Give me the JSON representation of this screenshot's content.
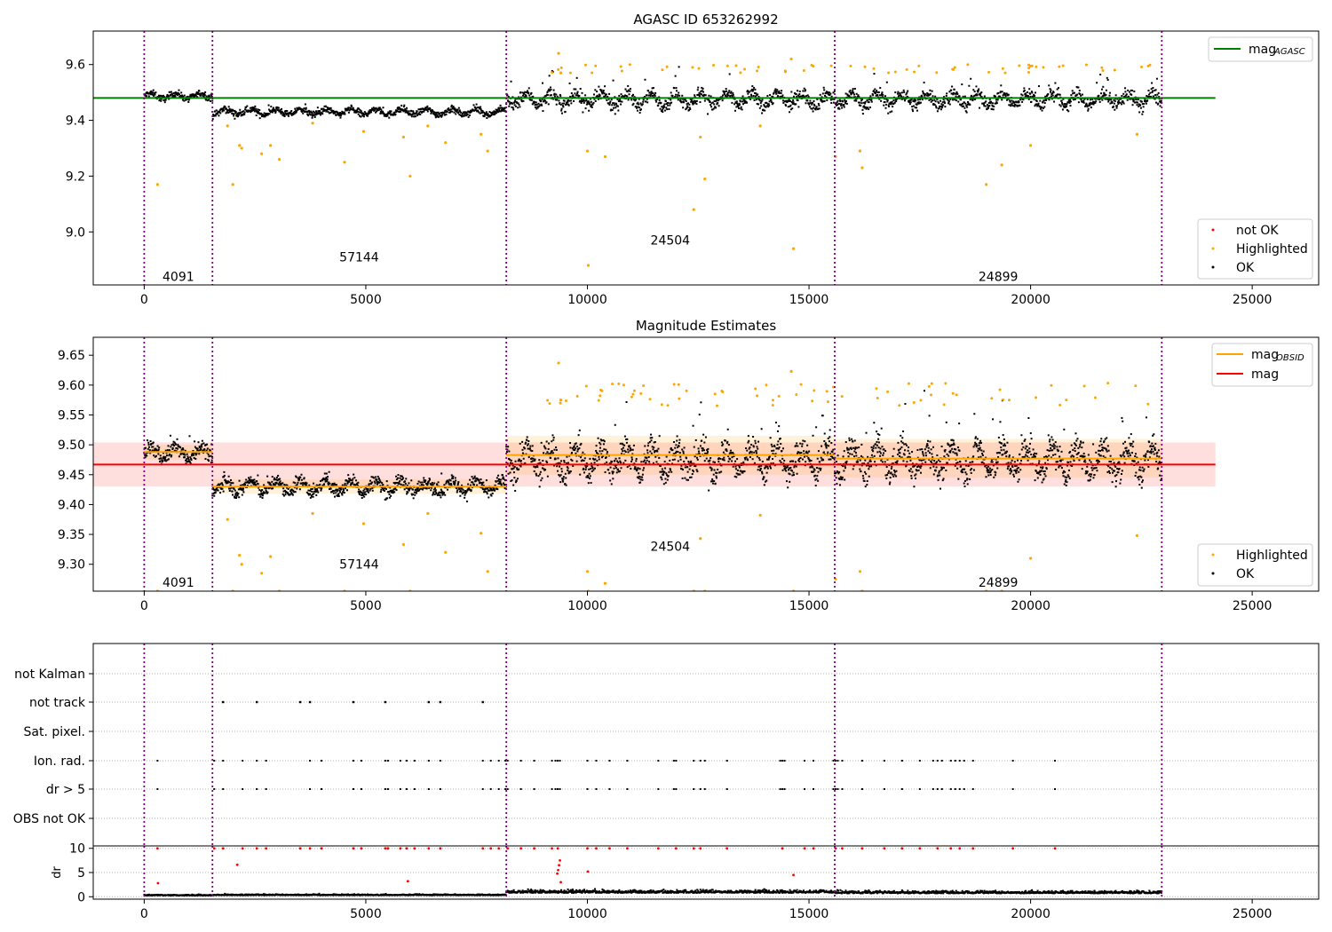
{
  "chart_data": [
    {
      "type": "scatter",
      "title": "AGASC ID 653262992",
      "xlim": [
        -1150,
        26500
      ],
      "ylim": [
        8.81,
        9.72
      ],
      "xticks": [
        0,
        5000,
        10000,
        15000,
        20000,
        25000
      ],
      "yticks": [
        9.0,
        9.2,
        9.4,
        9.6
      ],
      "ytick_labels": [
        "9.0",
        "9.2",
        "9.4",
        "9.6"
      ],
      "obs_boundaries": [
        0,
        1540,
        8170,
        15580,
        22960
      ],
      "obs_labels": [
        {
          "text": "4091",
          "x": 770,
          "y": 8.84
        },
        {
          "text": "57144",
          "x": 4850,
          "y": 8.91
        },
        {
          "text": "24504",
          "x": 11870,
          "y": 8.97
        },
        {
          "text": "24899",
          "x": 19270,
          "y": 8.84
        }
      ],
      "segments": [
        {
          "x": [
            0,
            1540
          ],
          "mean": 9.487,
          "spread": 0.012,
          "spike": 0.02
        },
        {
          "x": [
            1540,
            8170
          ],
          "mean": 9.43,
          "spread": 0.012,
          "spike": 0.015
        },
        {
          "x": [
            8170,
            15580
          ],
          "mean": 9.475,
          "spread": 0.025,
          "spike": 0.06
        },
        {
          "x": [
            15580,
            22960
          ],
          "mean": 9.475,
          "spread": 0.025,
          "spike": 0.06
        }
      ],
      "reference_line": {
        "name": "mag_AGASC",
        "value": 9.48,
        "x": [
          -1150,
          24170
        ],
        "color": "#008000"
      },
      "highlighted_outliers": [
        {
          "x": 300,
          "y": 9.17
        },
        {
          "x": 1880,
          "y": 9.38
        },
        {
          "x": 2000,
          "y": 9.17
        },
        {
          "x": 2150,
          "y": 9.31
        },
        {
          "x": 2200,
          "y": 9.3
        },
        {
          "x": 2650,
          "y": 9.28
        },
        {
          "x": 2850,
          "y": 9.31
        },
        {
          "x": 3050,
          "y": 9.26
        },
        {
          "x": 3800,
          "y": 9.39
        },
        {
          "x": 4520,
          "y": 9.25
        },
        {
          "x": 4950,
          "y": 9.36
        },
        {
          "x": 5850,
          "y": 9.34
        },
        {
          "x": 6000,
          "y": 9.2
        },
        {
          "x": 6400,
          "y": 9.38
        },
        {
          "x": 6800,
          "y": 9.32
        },
        {
          "x": 7600,
          "y": 9.35
        },
        {
          "x": 7750,
          "y": 9.29
        },
        {
          "x": 9350,
          "y": 9.64
        },
        {
          "x": 9400,
          "y": 9.57
        },
        {
          "x": 10000,
          "y": 9.29
        },
        {
          "x": 10020,
          "y": 8.88
        },
        {
          "x": 10400,
          "y": 9.27
        },
        {
          "x": 12400,
          "y": 9.08
        },
        {
          "x": 12550,
          "y": 9.34
        },
        {
          "x": 12650,
          "y": 9.19
        },
        {
          "x": 13900,
          "y": 9.38
        },
        {
          "x": 14650,
          "y": 8.94
        },
        {
          "x": 14600,
          "y": 9.62
        },
        {
          "x": 15600,
          "y": 9.27
        },
        {
          "x": 16150,
          "y": 9.29
        },
        {
          "x": 16200,
          "y": 9.23
        },
        {
          "x": 19000,
          "y": 9.17
        },
        {
          "x": 19350,
          "y": 9.24
        },
        {
          "x": 20000,
          "y": 9.31
        },
        {
          "x": 22400,
          "y": 9.35
        }
      ],
      "legend_line": [
        {
          "name": "mag",
          "subscript": "AGASC",
          "color": "#008000"
        }
      ],
      "legend_points": [
        {
          "name": "not OK",
          "color": "#ff0000"
        },
        {
          "name": "Highlighted",
          "color": "#ffa500"
        },
        {
          "name": "OK",
          "color": "#000000"
        }
      ]
    },
    {
      "type": "scatter",
      "title": "Magnitude Estimates",
      "xlim": [
        -1150,
        26500
      ],
      "ylim": [
        9.255,
        9.68
      ],
      "xticks": [
        0,
        5000,
        10000,
        15000,
        20000,
        25000
      ],
      "yticks": [
        9.3,
        9.35,
        9.4,
        9.45,
        9.5,
        9.55,
        9.6,
        9.65
      ],
      "ytick_labels": [
        "9.30",
        "9.35",
        "9.40",
        "9.45",
        "9.50",
        "9.55",
        "9.60",
        "9.65"
      ],
      "obs_boundaries": [
        0,
        1540,
        8170,
        15580,
        22960
      ],
      "obs_labels": [
        {
          "text": "4091",
          "x": 770,
          "y": 9.27
        },
        {
          "text": "57144",
          "x": 4850,
          "y": 9.3
        },
        {
          "text": "24504",
          "x": 11870,
          "y": 9.33
        },
        {
          "text": "24899",
          "x": 19270,
          "y": 9.27
        }
      ],
      "segments": [
        {
          "x": [
            0,
            1540
          ],
          "mean": 9.487,
          "spread": 0.012,
          "spike": 0.02
        },
        {
          "x": [
            1540,
            8170
          ],
          "mean": 9.43,
          "spread": 0.012,
          "spike": 0.015
        },
        {
          "x": [
            8170,
            15580
          ],
          "mean": 9.475,
          "spread": 0.025,
          "spike": 0.06
        },
        {
          "x": [
            15580,
            22960
          ],
          "mean": 9.475,
          "spread": 0.025,
          "spike": 0.06
        }
      ],
      "mag_line": {
        "name": "mag",
        "value": 9.467,
        "band": [
          9.43,
          9.504
        ],
        "x": [
          -1150,
          24170
        ],
        "color": "#ff0000"
      },
      "obsid_lines": [
        {
          "x": [
            0,
            1540
          ],
          "value": 9.488,
          "band": [
            9.475,
            9.5
          ]
        },
        {
          "x": [
            1540,
            8170
          ],
          "value": 9.43,
          "band": [
            9.418,
            9.442
          ]
        },
        {
          "x": [
            8170,
            15580
          ],
          "value": 9.483,
          "band": [
            9.45,
            9.515
          ]
        },
        {
          "x": [
            15580,
            22960
          ],
          "value": 9.477,
          "band": [
            9.445,
            9.51
          ]
        }
      ],
      "highlighted_outliers": [
        {
          "x": 300,
          "y": 9.255
        },
        {
          "x": 1880,
          "y": 9.375
        },
        {
          "x": 2000,
          "y": 9.255
        },
        {
          "x": 2150,
          "y": 9.315
        },
        {
          "x": 2200,
          "y": 9.3
        },
        {
          "x": 2650,
          "y": 9.285
        },
        {
          "x": 2850,
          "y": 9.313
        },
        {
          "x": 3050,
          "y": 9.255
        },
        {
          "x": 3800,
          "y": 9.385
        },
        {
          "x": 4520,
          "y": 9.255
        },
        {
          "x": 4950,
          "y": 9.368
        },
        {
          "x": 5850,
          "y": 9.333
        },
        {
          "x": 6000,
          "y": 9.255
        },
        {
          "x": 6400,
          "y": 9.385
        },
        {
          "x": 6800,
          "y": 9.32
        },
        {
          "x": 7600,
          "y": 9.352
        },
        {
          "x": 7750,
          "y": 9.288
        },
        {
          "x": 9350,
          "y": 9.637
        },
        {
          "x": 9400,
          "y": 9.575
        },
        {
          "x": 10000,
          "y": 9.288
        },
        {
          "x": 10020,
          "y": 9.255
        },
        {
          "x": 10400,
          "y": 9.268
        },
        {
          "x": 12400,
          "y": 9.255
        },
        {
          "x": 12550,
          "y": 9.343
        },
        {
          "x": 12650,
          "y": 9.255
        },
        {
          "x": 13900,
          "y": 9.382
        },
        {
          "x": 14650,
          "y": 9.255
        },
        {
          "x": 14600,
          "y": 9.623
        },
        {
          "x": 15600,
          "y": 9.275
        },
        {
          "x": 16150,
          "y": 9.288
        },
        {
          "x": 16200,
          "y": 9.255
        },
        {
          "x": 19000,
          "y": 9.255
        },
        {
          "x": 19350,
          "y": 9.255
        },
        {
          "x": 20000,
          "y": 9.31
        },
        {
          "x": 22400,
          "y": 9.348
        }
      ],
      "legend_line": [
        {
          "name": "mag",
          "subscript": "OBSID",
          "color": "#ffa500"
        },
        {
          "name": "mag",
          "subscript": "",
          "color": "#ff0000"
        }
      ],
      "legend_points": [
        {
          "name": "Highlighted",
          "color": "#ffa500"
        },
        {
          "name": "OK",
          "color": "#000000"
        }
      ]
    },
    {
      "type": "scatter",
      "xlim": [
        -1150,
        26500
      ],
      "categories": [
        "not Kalman",
        "not track",
        "Sat. pixel.",
        "Ion. rad.",
        "dr > 5",
        "OBS not OK"
      ],
      "obs_boundaries": [
        0,
        1540,
        8170,
        15580,
        22960
      ],
      "flag_points": {
        "not track": [
          1780,
          2540,
          3520,
          3740,
          4720,
          5440,
          6420,
          6680,
          7640
        ],
        "Ion. rad.": [
          300,
          1580,
          1780,
          2220,
          2540,
          2750,
          3740,
          4000,
          4720,
          4900,
          5440,
          5500,
          5780,
          5920,
          6100,
          6420,
          6680,
          7640,
          7820,
          8000,
          8150,
          8200,
          8500,
          8800,
          9200,
          9280,
          9330,
          9380,
          10000,
          10200,
          10500,
          10900,
          11600,
          11950,
          12000,
          12400,
          12550,
          12650,
          13150,
          14350,
          14400,
          14450,
          14900,
          15100,
          15550,
          15600,
          15650,
          15750,
          16200,
          16700,
          17100,
          17500,
          17800,
          17900,
          18000,
          18200,
          18300,
          18400,
          18500,
          18700,
          19600,
          20550
        ]
      },
      "dr_panel": {
        "ylim": [
          -0.5,
          10.5
        ],
        "yticks": [
          0,
          5,
          10
        ],
        "ytick_labels": [
          "0",
          "5",
          "10"
        ],
        "ylabel": "dr",
        "red_points": [
          {
            "x": 300,
            "y": 10
          },
          {
            "x": 310,
            "y": 2.8
          },
          {
            "x": 1580,
            "y": 10
          },
          {
            "x": 1780,
            "y": 10
          },
          {
            "x": 2100,
            "y": 6.6
          },
          {
            "x": 2220,
            "y": 10
          },
          {
            "x": 2540,
            "y": 10
          },
          {
            "x": 2750,
            "y": 10
          },
          {
            "x": 3520,
            "y": 10
          },
          {
            "x": 3740,
            "y": 10
          },
          {
            "x": 4000,
            "y": 10
          },
          {
            "x": 4720,
            "y": 10
          },
          {
            "x": 4900,
            "y": 10
          },
          {
            "x": 5440,
            "y": 10
          },
          {
            "x": 5500,
            "y": 10
          },
          {
            "x": 5780,
            "y": 10
          },
          {
            "x": 5920,
            "y": 10
          },
          {
            "x": 5950,
            "y": 3.2
          },
          {
            "x": 6100,
            "y": 10
          },
          {
            "x": 6420,
            "y": 10
          },
          {
            "x": 6680,
            "y": 10
          },
          {
            "x": 7640,
            "y": 10
          },
          {
            "x": 7820,
            "y": 10
          },
          {
            "x": 8000,
            "y": 10
          },
          {
            "x": 8200,
            "y": 10
          },
          {
            "x": 8500,
            "y": 10
          },
          {
            "x": 8800,
            "y": 10
          },
          {
            "x": 9200,
            "y": 10
          },
          {
            "x": 9330,
            "y": 10
          },
          {
            "x": 9380,
            "y": 7.5
          },
          {
            "x": 9360,
            "y": 6.5
          },
          {
            "x": 9340,
            "y": 5.5
          },
          {
            "x": 9320,
            "y": 4.8
          },
          {
            "x": 9400,
            "y": 3
          },
          {
            "x": 10000,
            "y": 10
          },
          {
            "x": 10010,
            "y": 5.2
          },
          {
            "x": 10200,
            "y": 10
          },
          {
            "x": 10500,
            "y": 10
          },
          {
            "x": 10900,
            "y": 10
          },
          {
            "x": 11600,
            "y": 10
          },
          {
            "x": 12000,
            "y": 10
          },
          {
            "x": 12400,
            "y": 10
          },
          {
            "x": 12550,
            "y": 10
          },
          {
            "x": 13150,
            "y": 10
          },
          {
            "x": 14400,
            "y": 10
          },
          {
            "x": 14650,
            "y": 4.5
          },
          {
            "x": 14900,
            "y": 10
          },
          {
            "x": 15100,
            "y": 10
          },
          {
            "x": 15600,
            "y": 10
          },
          {
            "x": 15750,
            "y": 10
          },
          {
            "x": 16200,
            "y": 10
          },
          {
            "x": 16700,
            "y": 10
          },
          {
            "x": 17100,
            "y": 10
          },
          {
            "x": 17500,
            "y": 10
          },
          {
            "x": 17900,
            "y": 10
          },
          {
            "x": 18200,
            "y": 10
          },
          {
            "x": 18400,
            "y": 10
          },
          {
            "x": 18700,
            "y": 10
          },
          {
            "x": 19600,
            "y": 10
          },
          {
            "x": 20550,
            "y": 10
          }
        ],
        "black_segments": [
          {
            "x": [
              0,
              1540
            ],
            "mean": 0.25
          },
          {
            "x": [
              1540,
              8170
            ],
            "mean": 0.3
          },
          {
            "x": [
              8170,
              15580
            ],
            "mean": 0.8
          },
          {
            "x": [
              15580,
              22960
            ],
            "mean": 0.7
          }
        ]
      }
    }
  ]
}
